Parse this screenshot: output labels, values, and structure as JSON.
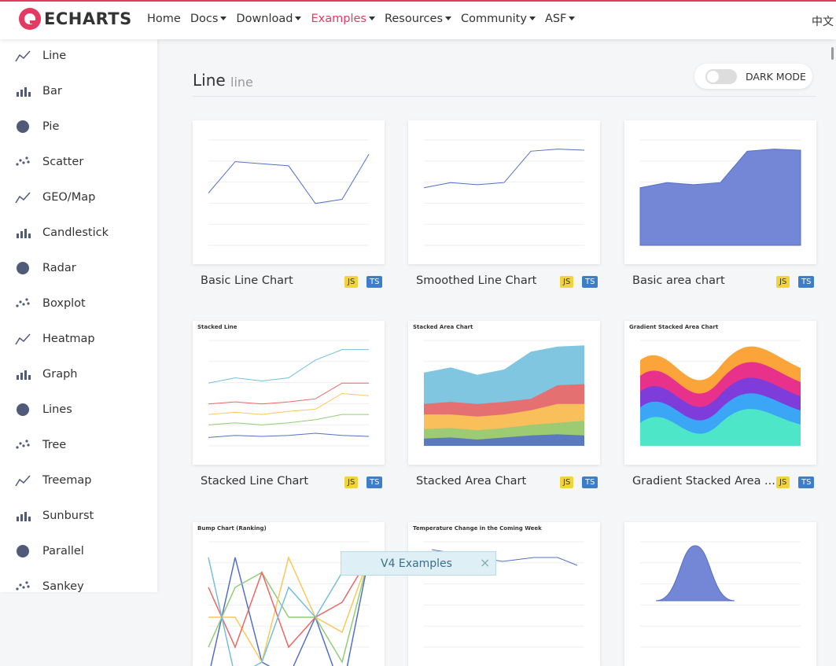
{
  "header": {
    "logo": "ECHARTS",
    "nav": [
      "Home",
      "Docs",
      "Download",
      "Examples",
      "Resources",
      "Community",
      "ASF"
    ],
    "lang": "中文"
  },
  "sidebar": [
    "Line",
    "Bar",
    "Pie",
    "Scatter",
    "GEO/Map",
    "Candlestick",
    "Radar",
    "Boxplot",
    "Heatmap",
    "Graph",
    "Lines",
    "Tree",
    "Treemap",
    "Sunburst",
    "Parallel",
    "Sankey"
  ],
  "section": {
    "title": "Line",
    "subtitle": "line",
    "dark_mode": "DARK MODE"
  },
  "cards": [
    {
      "title": "Basic Line Chart",
      "tags": [
        "JS",
        "TS"
      ]
    },
    {
      "title": "Smoothed Line Chart",
      "tags": [
        "JS",
        "TS"
      ]
    },
    {
      "title": "Basic area chart",
      "tags": [
        "JS",
        "TS"
      ]
    },
    {
      "title": "Stacked Line Chart",
      "tags": [
        "JS",
        "TS"
      ],
      "thumb_title": "Stacked Line"
    },
    {
      "title": "Stacked Area Chart",
      "tags": [
        "JS",
        "TS"
      ],
      "thumb_title": "Stacked Area Chart"
    },
    {
      "title": "Gradient Stacked Area ...",
      "tags": [
        "JS",
        "TS"
      ],
      "thumb_title": "Gradient Stacked Area Chart"
    },
    {
      "thumb_title": "Bump Chart (Ranking)"
    },
    {
      "thumb_title": "Temperature Change in the Coming Week"
    },
    {}
  ],
  "toast": "V4 Examples"
}
